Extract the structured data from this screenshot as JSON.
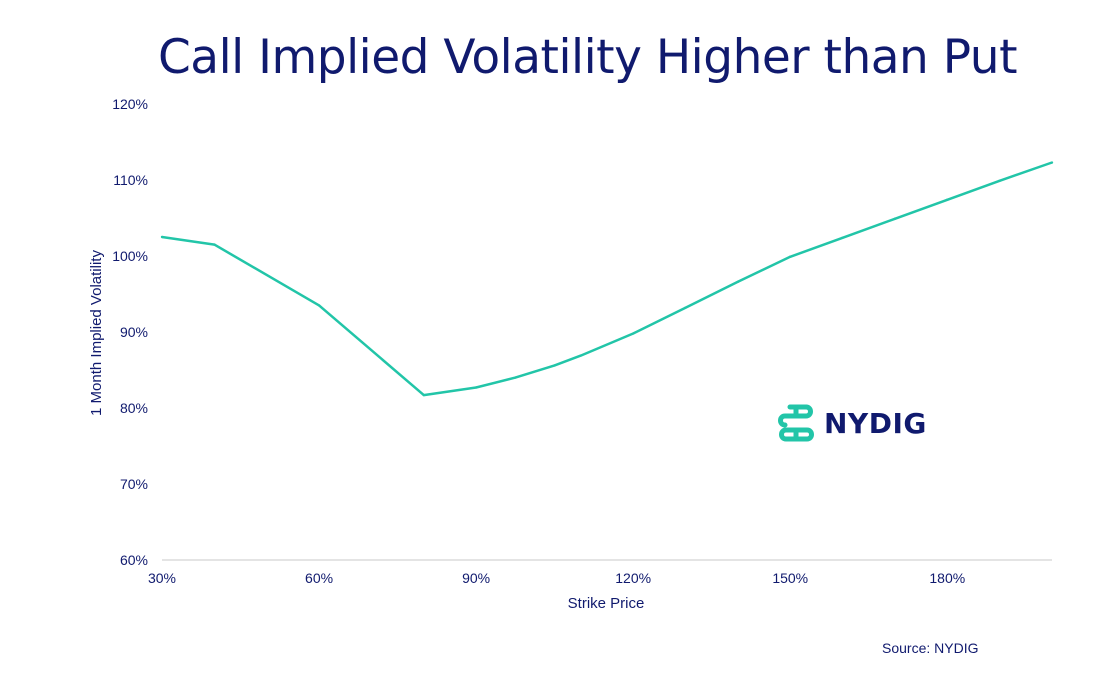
{
  "chart_data": {
    "type": "line",
    "title": "Call Implied Volatility Higher than Put",
    "xlabel": "Strike Price",
    "ylabel": "1 Month Implied Volatility",
    "x_tick_labels": [
      "30%",
      "60%",
      "90%",
      "120%",
      "150%",
      "180%"
    ],
    "y_tick_labels": [
      "60%",
      "70%",
      "80%",
      "90%",
      "100%",
      "110%",
      "120%"
    ],
    "xlim": [
      30,
      200
    ],
    "ylim": [
      60,
      120
    ],
    "series": [
      {
        "name": "1 Month Implied Volatility",
        "color": "#22c5a8",
        "x": [
          30,
          40,
          60,
          80,
          90,
          97.5,
          105,
          110,
          120,
          130,
          140,
          150,
          160,
          170,
          180,
          190,
          200
        ],
        "y": [
          102.5,
          101.5,
          93.5,
          81.7,
          82.7,
          84.0,
          85.6,
          86.9,
          89.8,
          93.2,
          96.6,
          99.9,
          102.4,
          104.9,
          107.4,
          109.9,
          112.3
        ]
      }
    ],
    "grid": false,
    "legend": "none"
  },
  "logo": {
    "text": "NYDIG",
    "icon": "nydig-logo-icon",
    "color": "#22c5a8"
  },
  "source": "Source: NYDIG"
}
